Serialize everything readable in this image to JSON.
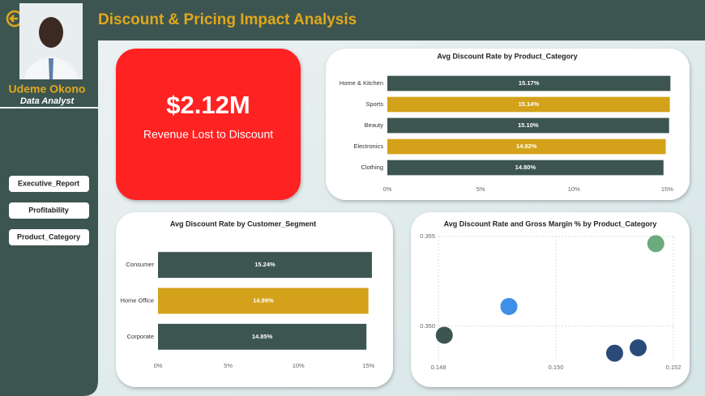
{
  "header": {
    "title": "Discount & Pricing Impact Analysis"
  },
  "profile": {
    "name": "Udeme Okono",
    "role": "Data Analyst"
  },
  "nav": [
    "Executive_Report",
    "Profitability",
    "Product_Category"
  ],
  "kpi": {
    "value": "$2.12M",
    "label": "Revenue Lost to Discount"
  },
  "chart_data": [
    {
      "type": "bar",
      "horizontal": true,
      "title": "Avg Discount Rate by Product_Category",
      "categories": [
        "Home & Kitchen",
        "Sports",
        "Beauty",
        "Electronics",
        "Clothing"
      ],
      "values": [
        15.17,
        15.14,
        15.1,
        14.92,
        14.8
      ],
      "value_labels": [
        "15.17%",
        "15.14%",
        "15.10%",
        "14.92%",
        "14.80%"
      ],
      "colors": [
        "#3d5550",
        "#d4a21a",
        "#3d5550",
        "#d4a21a",
        "#3d5550"
      ],
      "xlim": [
        0,
        15.2
      ],
      "xticks": [
        {
          "value": 0,
          "label": "0%"
        },
        {
          "value": 5,
          "label": "5%"
        },
        {
          "value": 10,
          "label": "10%"
        },
        {
          "value": 15,
          "label": "15%"
        }
      ],
      "grid": false
    },
    {
      "type": "bar",
      "horizontal": true,
      "title": "Avg Discount Rate by Customer_Segment",
      "categories": [
        "Consumer",
        "Home Office",
        "Corporate"
      ],
      "values": [
        15.24,
        14.99,
        14.85
      ],
      "value_labels": [
        "15.24%",
        "14.99%",
        "14.85%"
      ],
      "colors": [
        "#3d5550",
        "#d4a21a",
        "#3d5550"
      ],
      "xlim": [
        0,
        15.3
      ],
      "xticks": [
        {
          "value": 0,
          "label": "0%"
        },
        {
          "value": 5,
          "label": "5%"
        },
        {
          "value": 10,
          "label": "10%"
        },
        {
          "value": 15,
          "label": "15%"
        }
      ],
      "grid": false
    },
    {
      "type": "scatter",
      "title": "Avg Discount Rate and Gross Margin % by Product_Category",
      "x": [
        0.1517,
        0.1514,
        0.151,
        0.1492,
        0.1481
      ],
      "values": [
        0.3546,
        0.3488,
        0.3485,
        0.3511,
        0.3495
      ],
      "colors": [
        "#6aaa7c",
        "#2a4a7a",
        "#2a4a7a",
        "#3d8fe8",
        "#3d5550"
      ],
      "xlim": [
        0.148,
        0.152
      ],
      "xticks": [
        0.148,
        {
          "value": 0.15,
          "label": "0.150"
        },
        0.152
      ],
      "ylim": [
        0.3481,
        0.355
      ],
      "yticks": [
        {
          "value": 0.35,
          "label": "0.350"
        },
        0.355
      ],
      "grid": true
    }
  ]
}
